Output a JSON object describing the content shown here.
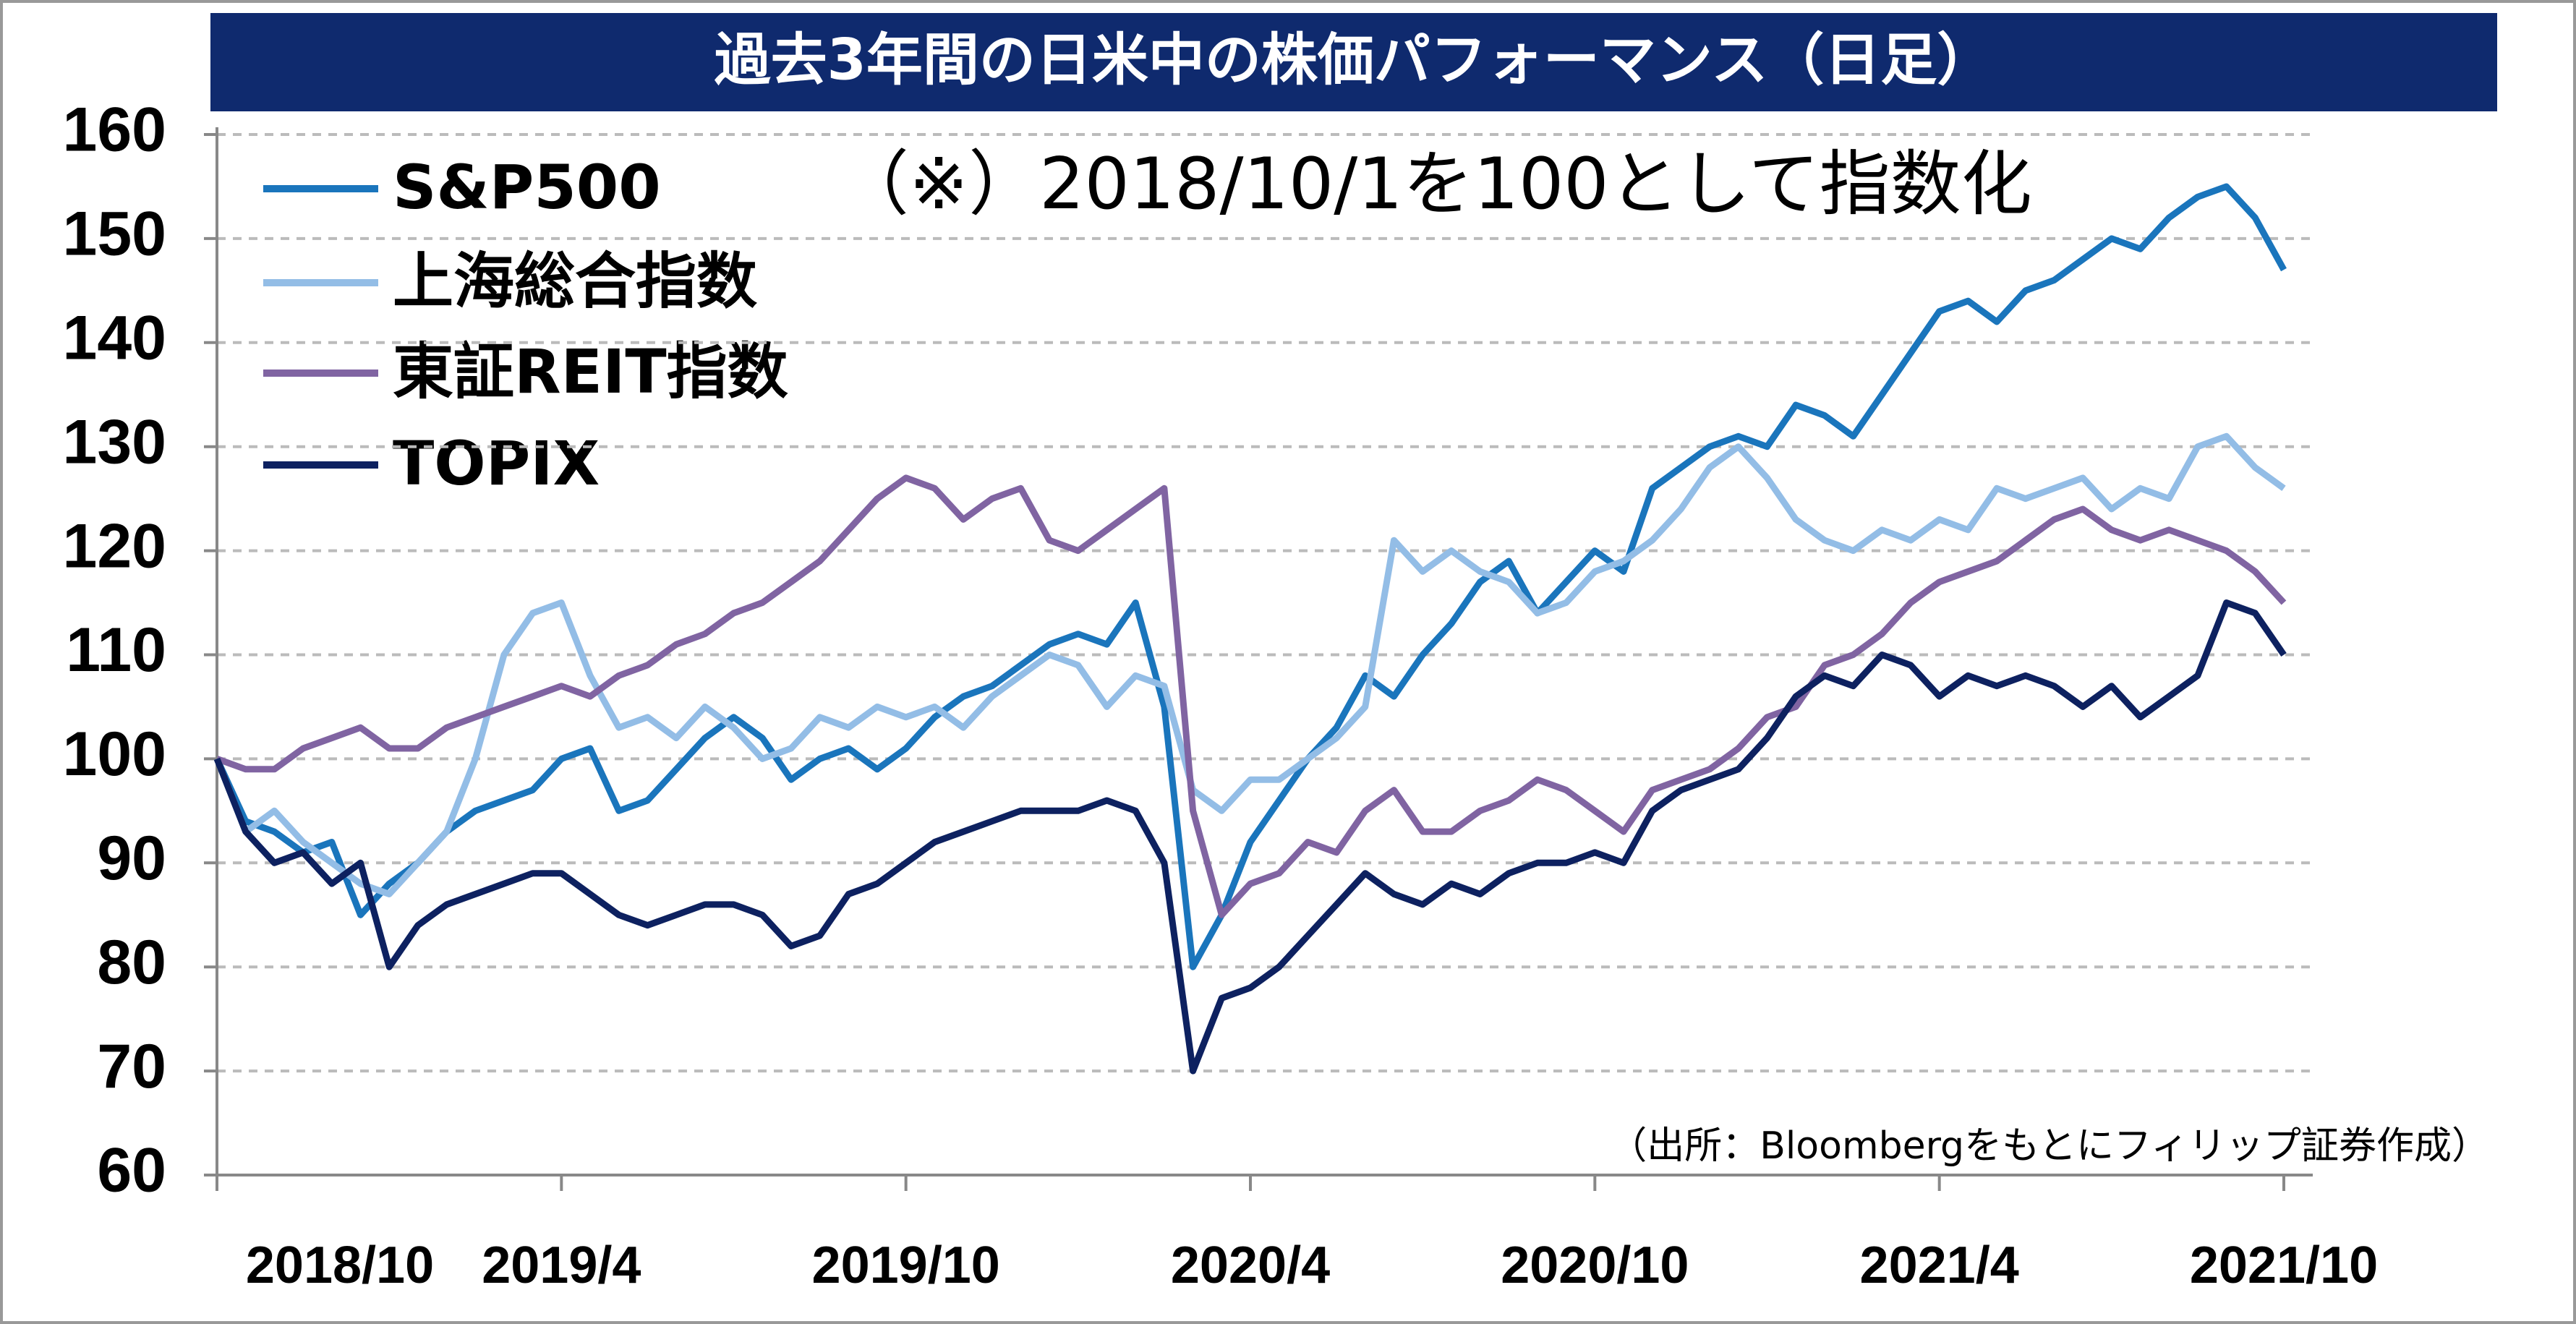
{
  "chart_data": {
    "type": "line",
    "title": "過去3年間の日米中の株価パフォーマンス（日足）",
    "annotations": [
      "（※）2018/10/1を100として指数化",
      "（出所：Bloombergをもとにフィリップ証券作成）"
    ],
    "categories": [
      "2018/10",
      null,
      null,
      null,
      null,
      null,
      null,
      null,
      null,
      null,
      null,
      null,
      "2019/4",
      null,
      null,
      null,
      null,
      null,
      null,
      null,
      null,
      null,
      null,
      null,
      "2019/10",
      null,
      null,
      null,
      null,
      null,
      null,
      null,
      null,
      null,
      null,
      null,
      "2020/4",
      null,
      null,
      null,
      null,
      null,
      null,
      null,
      null,
      null,
      null,
      null,
      "2020/10",
      null,
      null,
      null,
      null,
      null,
      null,
      null,
      null,
      null,
      null,
      null,
      "2021/4",
      null,
      null,
      null,
      null,
      null,
      null,
      null,
      null,
      null,
      null,
      null,
      "2021/10"
    ],
    "ylim": [
      60,
      160
    ],
    "yticks": [
      60,
      70,
      80,
      90,
      100,
      110,
      120,
      130,
      140,
      150,
      160
    ],
    "grid": true,
    "series": [
      {
        "name": "S&P500",
        "color": "#1a75bc",
        "values": [
          100,
          94,
          93,
          91,
          92,
          85,
          88,
          90,
          93,
          95,
          96,
          97,
          100,
          101,
          95,
          96,
          99,
          102,
          104,
          102,
          98,
          100,
          101,
          99,
          101,
          104,
          106,
          107,
          109,
          111,
          112,
          111,
          115,
          105,
          80,
          85,
          92,
          96,
          100,
          103,
          108,
          106,
          110,
          113,
          117,
          119,
          114,
          117,
          120,
          118,
          126,
          128,
          130,
          131,
          130,
          134,
          133,
          131,
          135,
          139,
          143,
          144,
          142,
          145,
          146,
          148,
          150,
          149,
          152,
          154,
          155,
          152,
          147
        ]
      },
      {
        "name": "上海総合指数",
        "color": "#93bde6",
        "values": [
          100,
          93,
          95,
          92,
          90,
          88,
          87,
          90,
          93,
          100,
          110,
          114,
          115,
          108,
          103,
          104,
          102,
          105,
          103,
          100,
          101,
          104,
          103,
          105,
          104,
          105,
          103,
          106,
          108,
          110,
          109,
          105,
          108,
          107,
          97,
          95,
          98,
          98,
          100,
          102,
          105,
          121,
          118,
          120,
          118,
          117,
          114,
          115,
          118,
          119,
          121,
          124,
          128,
          130,
          127,
          123,
          121,
          120,
          122,
          121,
          123,
          122,
          126,
          125,
          126,
          127,
          124,
          126,
          125,
          130,
          131,
          128,
          126
        ]
      },
      {
        "name": "東証REIT指数",
        "color": "#8064a2",
        "values": [
          100,
          99,
          99,
          101,
          102,
          103,
          101,
          101,
          103,
          104,
          105,
          106,
          107,
          106,
          108,
          109,
          111,
          112,
          114,
          115,
          117,
          119,
          122,
          125,
          127,
          126,
          123,
          125,
          126,
          121,
          120,
          122,
          124,
          126,
          95,
          85,
          88,
          89,
          92,
          91,
          95,
          97,
          93,
          93,
          95,
          96,
          98,
          97,
          95,
          93,
          97,
          98,
          99,
          101,
          104,
          105,
          109,
          110,
          112,
          115,
          117,
          118,
          119,
          121,
          123,
          124,
          122,
          121,
          122,
          121,
          120,
          118,
          115
        ]
      },
      {
        "name": "TOPIX",
        "color": "#0d2160",
        "values": [
          100,
          93,
          90,
          91,
          88,
          90,
          80,
          84,
          86,
          87,
          88,
          89,
          89,
          87,
          85,
          84,
          85,
          86,
          86,
          85,
          82,
          83,
          87,
          88,
          90,
          92,
          93,
          94,
          95,
          95,
          95,
          96,
          95,
          90,
          70,
          77,
          78,
          80,
          83,
          86,
          89,
          87,
          86,
          88,
          87,
          89,
          90,
          90,
          91,
          90,
          95,
          97,
          98,
          99,
          102,
          106,
          108,
          107,
          110,
          109,
          106,
          108,
          107,
          108,
          107,
          105,
          107,
          104,
          106,
          108,
          115,
          114,
          110
        ]
      }
    ]
  }
}
